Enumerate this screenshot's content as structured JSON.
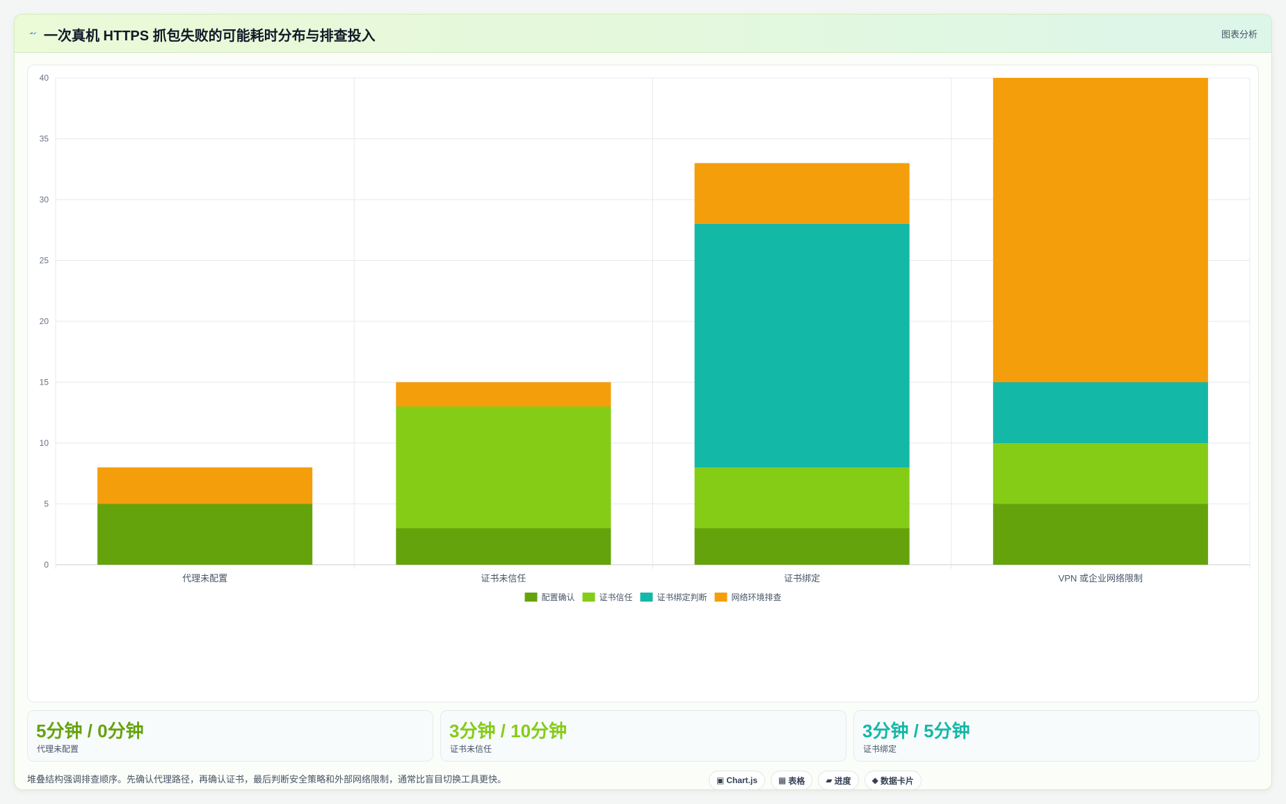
{
  "header": {
    "title": "一次真机 HTTPS 抓包失败的可能耗时分布与排查投入",
    "tag": "图表分析",
    "icon": "lightning-icon"
  },
  "chart_data": {
    "type": "bar",
    "stacked": true,
    "title": "",
    "xlabel": "",
    "ylabel": "",
    "categories": [
      "代理未配置",
      "证书未信任",
      "证书绑定",
      "VPN 或企业网络限制"
    ],
    "series": [
      {
        "name": "配置确认",
        "color": "#65a30d",
        "values": [
          5,
          3,
          3,
          5
        ]
      },
      {
        "name": "证书信任",
        "color": "#84cc16",
        "values": [
          0,
          10,
          5,
          5
        ]
      },
      {
        "name": "证书绑定判断",
        "color": "#14b8a6",
        "values": [
          0,
          0,
          20,
          5
        ]
      },
      {
        "name": "网络环境排查",
        "color": "#f59e0b",
        "values": [
          3,
          2,
          5,
          25
        ]
      }
    ],
    "ylim": [
      0,
      40
    ],
    "yticks": [
      0,
      5,
      10,
      15,
      20,
      25,
      30,
      35,
      40
    ],
    "grid": true,
    "legend": "bottom"
  },
  "stats": [
    {
      "value": "5分钟 / 0分钟",
      "label": "代理未配置",
      "color": "#65a30d"
    },
    {
      "value": "3分钟 / 10分钟",
      "label": "证书未信任",
      "color": "#84cc16"
    },
    {
      "value": "3分钟 / 5分钟",
      "label": "证书绑定",
      "color": "#14b8a6"
    }
  ],
  "footnote": "堆叠结构强调排查顺序。先确认代理路径，再确认证书，最后判断安全策略和外部网络限制，通常比盲目切换工具更快。",
  "pills": [
    {
      "icon": "▣",
      "label": "Chart.js"
    },
    {
      "icon": "▦",
      "label": "表格"
    },
    {
      "icon": "▰",
      "label": "进度"
    },
    {
      "icon": "◆",
      "label": "数据卡片"
    }
  ]
}
